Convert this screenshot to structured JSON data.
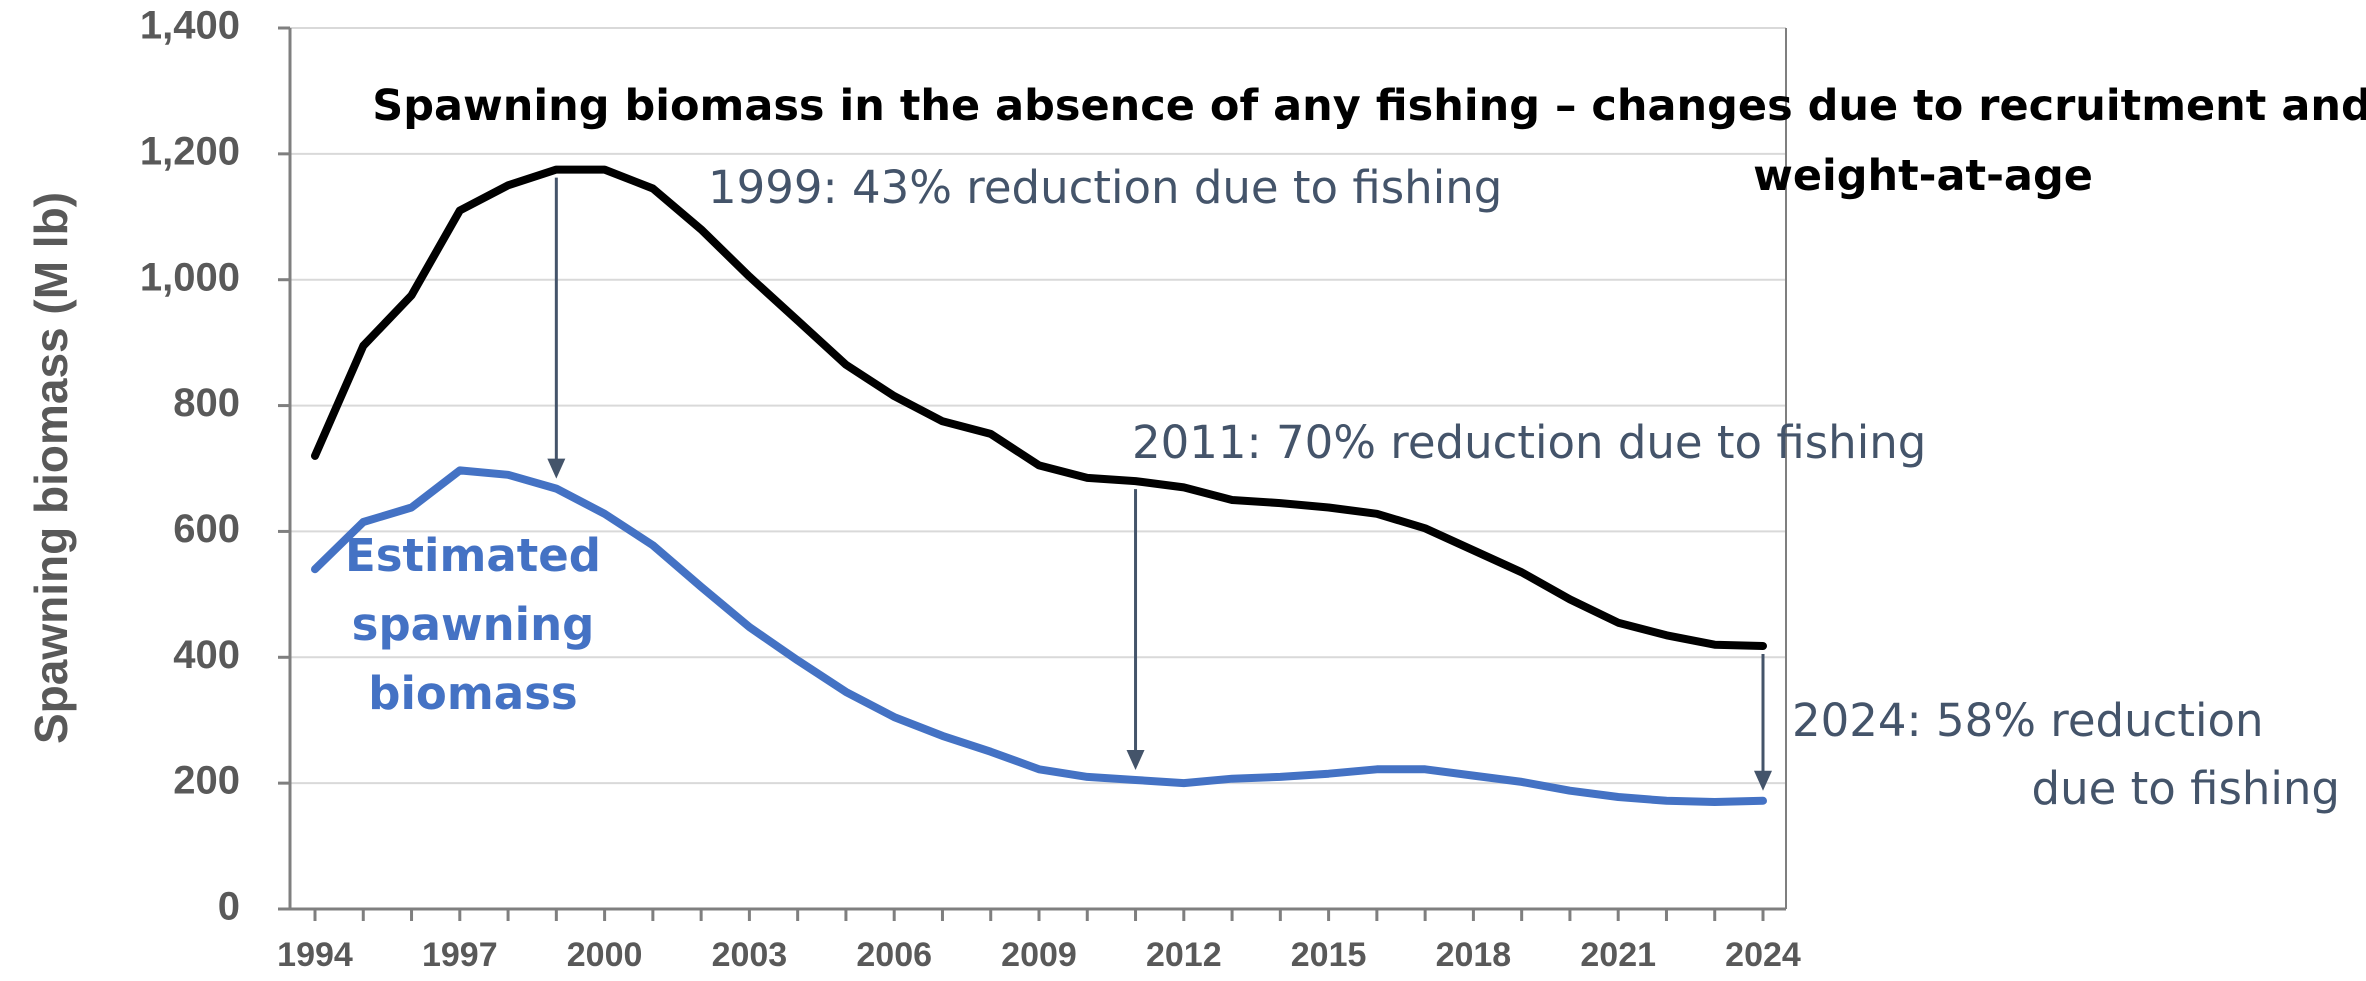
{
  "chart_data": {
    "type": "line",
    "ylabel": "Spawning biomass (M lb)",
    "xlabel": "",
    "ylim": [
      0,
      1400
    ],
    "xlim": [
      1994,
      2024
    ],
    "yticks": [
      "0",
      "200",
      "400",
      "600",
      "800",
      "1,000",
      "1,200",
      "1,400"
    ],
    "xticks": [
      "1994",
      "1997",
      "2000",
      "2003",
      "2006",
      "2009",
      "2012",
      "2015",
      "2018",
      "2021",
      "2024"
    ],
    "grid": "horizontal",
    "x": [
      1994,
      1995,
      1996,
      1997,
      1998,
      1999,
      2000,
      2001,
      2002,
      2003,
      2004,
      2005,
      2006,
      2007,
      2008,
      2009,
      2010,
      2011,
      2012,
      2013,
      2014,
      2015,
      2016,
      2017,
      2018,
      2019,
      2020,
      2021,
      2022,
      2023,
      2024
    ],
    "series": [
      {
        "name": "Spawning biomass in the absence of any fishing – changes due to recruitment and weight-at-age",
        "color": "#000000",
        "values": [
          720,
          895,
          975,
          1110,
          1150,
          1175,
          1175,
          1145,
          1080,
          1005,
          935,
          865,
          815,
          775,
          755,
          705,
          685,
          680,
          670,
          650,
          645,
          638,
          628,
          605,
          570,
          535,
          492,
          455,
          435,
          420,
          418
        ]
      },
      {
        "name": "Estimated spawning biomass",
        "color": "#4472c4",
        "values": [
          540,
          615,
          638,
          697,
          690,
          668,
          628,
          578,
          512,
          448,
          395,
          345,
          305,
          275,
          250,
          222,
          210,
          205,
          200,
          207,
          210,
          215,
          222,
          222,
          212,
          202,
          188,
          178,
          172,
          170,
          172
        ]
      }
    ],
    "labels": {
      "black_line": [
        "Spawning biomass in the absence of any fishing – changes due to recruitment and",
        "weight-at-age"
      ],
      "blue_line": [
        "Estimated",
        "spawning",
        "biomass"
      ]
    },
    "annotations": [
      {
        "year": 1999,
        "text": [
          "1999: 43% reduction due to fishing"
        ]
      },
      {
        "year": 2011,
        "text": [
          "2011: 70% reduction due to fishing"
        ]
      },
      {
        "year": 2024,
        "text": [
          "2024: 58% reduction",
          "due to fishing"
        ]
      }
    ],
    "annotation_color": "#44546a"
  }
}
